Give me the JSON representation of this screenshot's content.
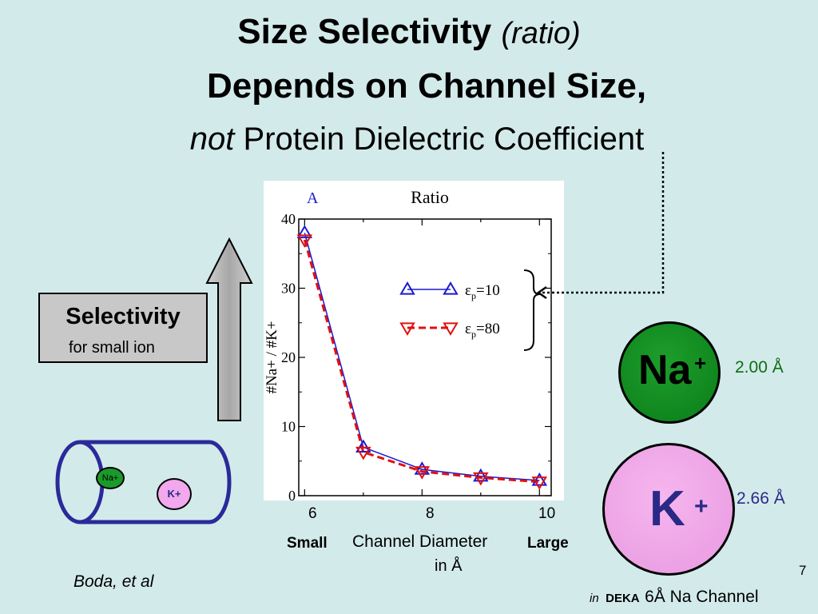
{
  "title": {
    "line1_bold": "Size Selectivity",
    "line1_italic": "(ratio)",
    "line2": "Depends on Channel Size,",
    "line3_italic": "not",
    "line3_rest": "Protein Dielectric Coefficient"
  },
  "selectivity_box": {
    "title": "Selectivity",
    "subtitle": "for small ion"
  },
  "ions": {
    "na_label": "Na",
    "na_charge": "+",
    "na_radius": "2.00 Å",
    "k_label": "K",
    "k_charge": "+",
    "k_radius": "2.66 Å",
    "na_small": "Na+",
    "k_small": "K+"
  },
  "x_axis_below": {
    "ticks": [
      "6",
      "8",
      "10"
    ],
    "small": "Small",
    "label_line1": "Channel Diameter",
    "label_line2": "in Å",
    "large": "Large"
  },
  "footer": {
    "citation": "Boda, et al",
    "page_number": "7",
    "in": "in",
    "deka": "DEKA",
    "rest": "6Å Na Channel"
  },
  "colors": {
    "background": "#d3eaea",
    "series_eps10": "#1a1ad0",
    "series_eps80": "#e01010",
    "na_green": "#1a9a2a",
    "k_pink": "#f0a8ea",
    "channel_blue": "#2a2a9a"
  },
  "chart_data": {
    "type": "line",
    "panel_label": "A",
    "title": "Ratio",
    "ylabel": "#Na+ / #K+",
    "xlim": [
      5.9,
      10.2
    ],
    "ylim": [
      0,
      40
    ],
    "yticks": [
      "0",
      "10",
      "20",
      "30",
      "40"
    ],
    "x": [
      6,
      7,
      8,
      9,
      10
    ],
    "series": [
      {
        "name": "εp=10",
        "values": [
          38,
          7,
          3.8,
          2.8,
          2.2
        ],
        "color": "#1a1ad0",
        "marker": "triangle-up",
        "line": "solid"
      },
      {
        "name": "εp=80",
        "values": [
          37,
          6.3,
          3.5,
          2.6,
          2.0
        ],
        "color": "#e01010",
        "marker": "triangle-down",
        "line": "dashed"
      }
    ],
    "legend": "right"
  }
}
